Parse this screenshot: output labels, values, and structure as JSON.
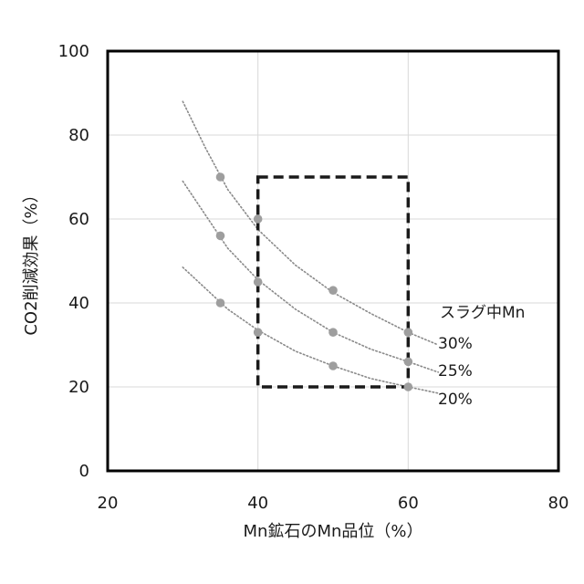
{
  "chart_data": {
    "type": "scatter",
    "title": "",
    "xlabel": "Mn鉱石のMn品位（%）",
    "ylabel": "CO2削減効果（%）",
    "xlim": [
      20,
      80
    ],
    "ylim": [
      0,
      100
    ],
    "x_ticks": [
      "20",
      "40",
      "60",
      "80"
    ],
    "y_ticks": [
      "0",
      "20",
      "40",
      "60",
      "80",
      "100"
    ],
    "grid": true,
    "legend_title": "スラグ中Mn",
    "series": [
      {
        "name": "30%",
        "points": [
          [
            35,
            70
          ],
          [
            40,
            60
          ],
          [
            50,
            43
          ],
          [
            60,
            33
          ]
        ],
        "trend": [
          [
            30,
            88
          ],
          [
            33,
            77
          ],
          [
            36,
            67
          ],
          [
            40,
            57.5
          ],
          [
            45,
            49
          ],
          [
            50,
            42.5
          ],
          [
            55,
            37.5
          ],
          [
            60,
            33
          ],
          [
            64,
            30
          ]
        ]
      },
      {
        "name": "25%",
        "points": [
          [
            35,
            56
          ],
          [
            40,
            45
          ],
          [
            50,
            33
          ],
          [
            60,
            26
          ]
        ],
        "trend": [
          [
            30,
            69
          ],
          [
            33,
            61
          ],
          [
            36,
            53
          ],
          [
            40,
            45.5
          ],
          [
            45,
            38.5
          ],
          [
            50,
            33
          ],
          [
            55,
            29
          ],
          [
            60,
            26
          ],
          [
            64,
            23.5
          ]
        ]
      },
      {
        "name": "20%",
        "points": [
          [
            35,
            40
          ],
          [
            40,
            33
          ],
          [
            50,
            25
          ],
          [
            60,
            20
          ]
        ],
        "trend": [
          [
            30,
            48.5
          ],
          [
            33,
            43.5
          ],
          [
            36,
            38.5
          ],
          [
            40,
            33.5
          ],
          [
            45,
            28.5
          ],
          [
            50,
            25
          ],
          [
            55,
            22
          ],
          [
            60,
            20
          ],
          [
            64,
            18.5
          ]
        ]
      }
    ],
    "highlight_box": {
      "x": [
        40,
        60
      ],
      "y": [
        20,
        70
      ]
    },
    "colors": {
      "marker": "#9e9e9e",
      "trend": "#8a8a8a",
      "grid": "#d9d9d9",
      "box": "#1a1a1a",
      "frame": "#000000"
    }
  }
}
